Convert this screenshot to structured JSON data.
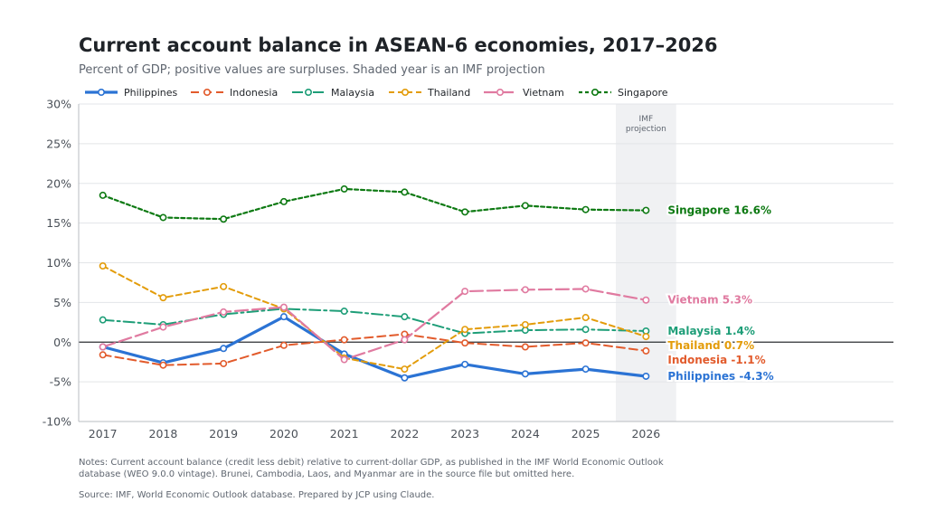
{
  "title": "Current account balance in ASEAN-6 economies, 2017–2026",
  "subtitle": "Percent of GDP; positive values are surpluses. Shaded year is an IMF projection",
  "notes": "Notes: Current account balance (credit less debit) relative to current-dollar GDP, as published in the IMF World Economic Outlook database (WEO 9.0.0 vintage). Brunei, Cambodia, Laos, and Myanmar are in the source file but omitted here.",
  "source": "Source: IMF, World Economic Outlook database. Prepared by JCP using Claude.",
  "chart_data": {
    "type": "line",
    "x": [
      2017,
      2018,
      2019,
      2020,
      2021,
      2022,
      2023,
      2024,
      2025,
      2026
    ],
    "xlim": [
      2016.6,
      2030.1
    ],
    "ylim": [
      -10,
      30
    ],
    "yticks": [
      -10,
      -5,
      0,
      5,
      10,
      15,
      20,
      25,
      30
    ],
    "ytick_labels": [
      "-10%",
      "-5%",
      "0%",
      "5%",
      "10%",
      "15%",
      "20%",
      "25%",
      "30%"
    ],
    "grid": true,
    "legend_position": "top-left",
    "projection_band": {
      "year": 2026,
      "label_line1": "IMF",
      "label_line2": "projection"
    },
    "series": [
      {
        "name": "Philippines",
        "color": "#2b73d4",
        "dash": "",
        "width": 3.2,
        "values": [
          -0.6,
          -2.6,
          -0.8,
          3.2,
          -1.5,
          -4.5,
          -2.8,
          -4.0,
          -3.4,
          -4.3
        ],
        "end_label": "Philippines  -4.3%"
      },
      {
        "name": "Indonesia",
        "color": "#e25b2c",
        "dash": "9,5",
        "width": 2,
        "values": [
          -1.6,
          -2.9,
          -2.7,
          -0.4,
          0.3,
          1.0,
          -0.1,
          -0.6,
          -0.1,
          -1.1
        ],
        "end_label": "Indonesia  -1.1%"
      },
      {
        "name": "Malaysia",
        "color": "#1e9e78",
        "dash": "12,4,3,4",
        "width": 2,
        "values": [
          2.8,
          2.2,
          3.5,
          4.2,
          3.9,
          3.2,
          1.1,
          1.5,
          1.6,
          1.4
        ],
        "end_label": "Malaysia  1.4%"
      },
      {
        "name": "Thailand",
        "color": "#e39c0a",
        "dash": "6,4",
        "width": 2,
        "values": [
          9.6,
          5.6,
          7.0,
          4.2,
          -2.0,
          -3.4,
          1.6,
          2.2,
          3.1,
          0.7
        ],
        "end_label": "Thailand  0.7%"
      },
      {
        "name": "Vietnam",
        "color": "#e07aa0",
        "dash": "14,5",
        "width": 2.2,
        "values": [
          -0.6,
          1.9,
          3.8,
          4.4,
          -2.2,
          0.3,
          6.4,
          6.6,
          6.7,
          5.3
        ],
        "end_label": "Vietnam  5.3%"
      },
      {
        "name": "Singapore",
        "color": "#0e7a13",
        "dash": "4,3",
        "width": 2.2,
        "values": [
          18.5,
          15.7,
          15.5,
          17.7,
          19.3,
          18.9,
          16.4,
          17.2,
          16.7,
          16.6
        ],
        "end_label": "Singapore  16.6%"
      }
    ]
  }
}
